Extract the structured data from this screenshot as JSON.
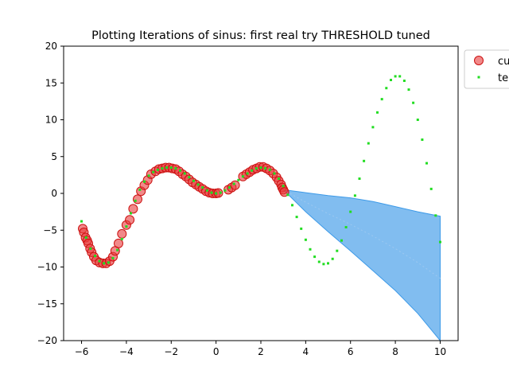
{
  "chart_data": {
    "type": "scatter",
    "title": "Plotting Iterations of sinus: first real try THRESHOLD tuned",
    "xlabel": "",
    "ylabel": "",
    "xlim": [
      -6.8,
      10.8
    ],
    "ylim": [
      -20,
      20
    ],
    "x_ticks": [
      -6,
      -4,
      -2,
      0,
      2,
      4,
      6,
      8,
      10
    ],
    "y_ticks": [
      -20,
      -15,
      -10,
      -5,
      0,
      5,
      10,
      15,
      20
    ],
    "x_tick_labels": [
      "−6",
      "−4",
      "−2",
      "0",
      "2",
      "4",
      "6",
      "8",
      "10"
    ],
    "y_tick_labels": [
      "−20",
      "−15",
      "−10",
      "−5",
      "0",
      "5",
      "10",
      "15",
      "20"
    ],
    "grid": false,
    "legend_position": "top-right, outside the axes, clipped",
    "legend": [
      {
        "label": "cu",
        "color": "#e83a3a",
        "marker": "large circle"
      },
      {
        "label": "te",
        "color": "#22dd22",
        "marker": "small square"
      }
    ],
    "series": [
      {
        "name": "cu",
        "color": "#e83a3a",
        "x": [
          -5.95,
          -5.9,
          -5.82,
          -5.75,
          -5.7,
          -5.62,
          -5.55,
          -5.45,
          -5.35,
          -5.2,
          -5.05,
          -4.9,
          -4.75,
          -4.6,
          -4.5,
          -4.35,
          -4.2,
          -4.0,
          -3.85,
          -3.7,
          -3.5,
          -3.35,
          -3.2,
          -3.05,
          -2.9,
          -2.7,
          -2.55,
          -2.4,
          -2.25,
          -2.1,
          -1.95,
          -1.8,
          -1.65,
          -1.5,
          -1.35,
          -1.2,
          -1.05,
          -0.9,
          -0.75,
          -0.6,
          -0.45,
          -0.3,
          -0.15,
          0.0,
          0.1,
          0.55,
          0.7,
          0.85,
          1.2,
          1.35,
          1.5,
          1.65,
          1.8,
          1.95,
          2.1,
          2.25,
          2.4,
          2.55,
          2.7,
          2.8,
          2.9,
          2.95,
          3.0,
          3.05
        ],
        "y": [
          -4.8,
          -5.3,
          -6.0,
          -6.4,
          -6.8,
          -7.5,
          -8.0,
          -8.6,
          -9.1,
          -9.4,
          -9.5,
          -9.5,
          -9.2,
          -8.6,
          -7.8,
          -6.8,
          -5.5,
          -4.3,
          -3.6,
          -2.1,
          -0.8,
          0.3,
          1.1,
          1.8,
          2.6,
          3.0,
          3.3,
          3.4,
          3.5,
          3.5,
          3.4,
          3.3,
          3.0,
          2.6,
          2.3,
          1.9,
          1.5,
          1.2,
          0.9,
          0.6,
          0.3,
          0.1,
          0.0,
          0.0,
          0.05,
          0.5,
          0.8,
          1.1,
          2.3,
          2.6,
          2.9,
          3.2,
          3.4,
          3.6,
          3.6,
          3.4,
          3.1,
          2.7,
          2.2,
          1.7,
          1.2,
          0.8,
          0.5,
          0.2
        ]
      },
      {
        "name": "te",
        "color": "#22dd22",
        "x": [
          -6.0,
          -5.8,
          -5.6,
          -5.4,
          -5.2,
          -5.0,
          -4.8,
          -4.6,
          -4.4,
          -4.2,
          -4.0,
          -3.8,
          -3.6,
          -3.4,
          -3.2,
          -3.0,
          -2.8,
          -2.6,
          -2.4,
          -2.2,
          -2.0,
          -1.8,
          -1.6,
          -1.4,
          -1.2,
          -1.0,
          -0.8,
          -0.6,
          -0.4,
          -0.2,
          0.0,
          0.2,
          0.4,
          0.6,
          0.8,
          1.0,
          1.2,
          1.4,
          1.6,
          1.8,
          2.0,
          2.2,
          2.4,
          2.6,
          2.8,
          3.0,
          3.2,
          3.4,
          3.6,
          3.8,
          4.0,
          4.2,
          4.4,
          4.6,
          4.8,
          5.0,
          5.2,
          5.4,
          5.6,
          5.8,
          6.0,
          6.2,
          6.4,
          6.6,
          6.8,
          7.0,
          7.2,
          7.4,
          7.6,
          7.8,
          8.0,
          8.2,
          8.4,
          8.6,
          8.8,
          9.0,
          9.2,
          9.4,
          9.6,
          9.8,
          10.0
        ],
        "y": [
          -3.8,
          -6.0,
          -7.5,
          -8.5,
          -9.2,
          -9.5,
          -9.4,
          -8.8,
          -7.7,
          -6.2,
          -4.5,
          -2.7,
          -1.0,
          0.5,
          1.6,
          2.4,
          2.9,
          3.2,
          3.4,
          3.5,
          3.5,
          3.4,
          3.1,
          2.7,
          2.2,
          1.7,
          1.2,
          0.8,
          0.4,
          0.1,
          0.0,
          0.1,
          0.4,
          0.8,
          1.3,
          1.8,
          2.3,
          2.7,
          3.1,
          3.4,
          3.5,
          3.4,
          3.2,
          2.7,
          2.0,
          1.0,
          -0.2,
          -1.6,
          -3.2,
          -4.8,
          -6.3,
          -7.6,
          -8.6,
          -9.3,
          -9.6,
          -9.5,
          -8.9,
          -7.8,
          -6.4,
          -4.6,
          -2.5,
          -0.3,
          2.0,
          4.4,
          6.8,
          9.0,
          11.0,
          12.8,
          14.3,
          15.4,
          15.9,
          15.9,
          15.3,
          14.1,
          12.3,
          10.0,
          7.3,
          4.1,
          0.6,
          -3.0,
          -6.6
        ]
      }
    ],
    "band": {
      "color": "#3d9ae8",
      "x": [
        3.0,
        4.0,
        5.0,
        6.0,
        7.0,
        8.0,
        9.0,
        10.0
      ],
      "upper": [
        0.5,
        0.1,
        -0.3,
        -0.6,
        -1.1,
        -1.8,
        -2.5,
        -3.1
      ],
      "lower": [
        0.5,
        -2.5,
        -5.2,
        -7.8,
        -10.5,
        -13.2,
        -16.3,
        -20.0
      ]
    }
  }
}
